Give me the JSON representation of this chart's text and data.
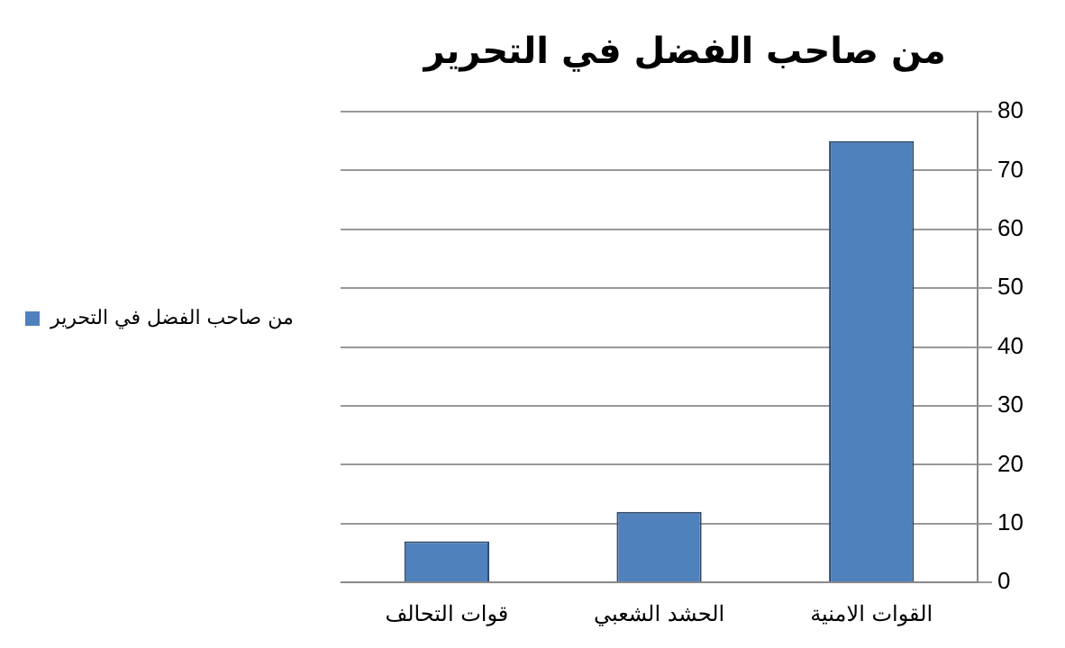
{
  "chart_data": {
    "type": "bar",
    "title": "من صاحب الفضل في التحرير",
    "categories": [
      "قوات التحالف",
      "الحشد الشعبي",
      "القوات الامنية"
    ],
    "series": [
      {
        "name": "من صاحب الفضل في التحرير",
        "color": "#4f81bd",
        "values": [
          7,
          12,
          75
        ]
      }
    ],
    "ylim": [
      0,
      80
    ],
    "yticks": [
      0,
      10,
      20,
      30,
      40,
      50,
      60,
      70,
      80
    ],
    "grid": "y",
    "legend": "left"
  }
}
